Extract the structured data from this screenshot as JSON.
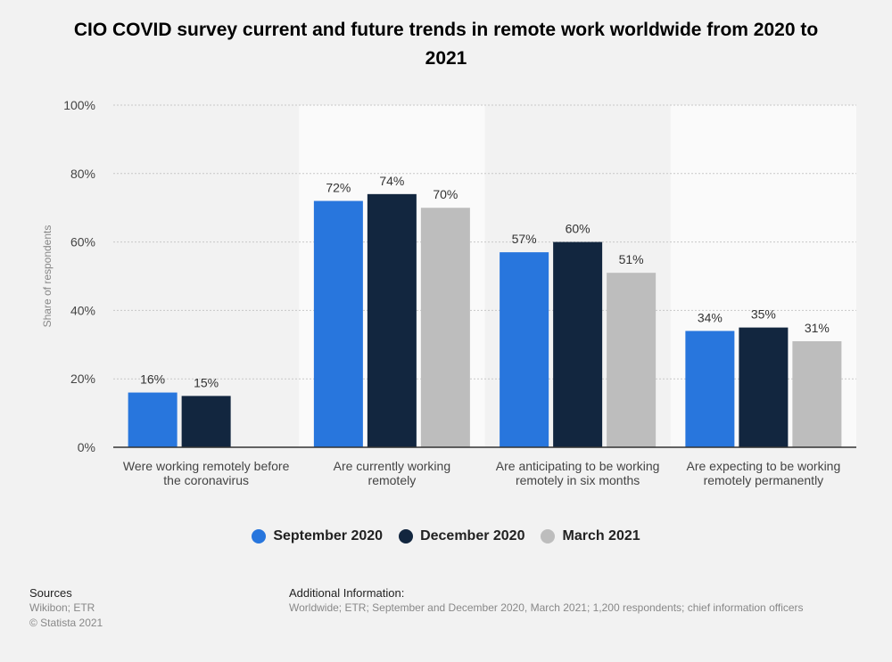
{
  "chart_data": {
    "type": "bar",
    "title": "CIO COVID survey current and future trends in remote work worldwide from 2020 to 2021",
    "ylabel": "Share of respondents",
    "xlabel": "",
    "ylim": [
      0,
      100
    ],
    "yticks": [
      "0%",
      "20%",
      "40%",
      "60%",
      "80%",
      "100%"
    ],
    "grid": true,
    "legend_position": "bottom",
    "categories": [
      [
        "Were working remotely before",
        "the coronavirus"
      ],
      [
        "Are currently working",
        "remotely"
      ],
      [
        "Are anticipating to be working",
        "remotely in six months"
      ],
      [
        "Are expecting to be working",
        "remotely permanently"
      ]
    ],
    "series": [
      {
        "name": "September 2020",
        "color": "#2876dd",
        "values": [
          16,
          72,
          57,
          34
        ],
        "labels": [
          "16%",
          "72%",
          "57%",
          "34%"
        ]
      },
      {
        "name": "December 2020",
        "color": "#12263f",
        "values": [
          15,
          74,
          60,
          35
        ],
        "labels": [
          "15%",
          "74%",
          "60%",
          "35%"
        ]
      },
      {
        "name": "March 2021",
        "color": "#bdbdbd",
        "values": [
          null,
          70,
          51,
          31
        ],
        "labels": [
          "",
          "70%",
          "51%",
          "31%"
        ]
      }
    ]
  },
  "footer": {
    "sources_label": "Sources",
    "sources_line1": "Wikibon; ETR",
    "sources_line2": "© Statista 2021",
    "additional_label": "Additional Information:",
    "additional_text": "Worldwide; ETR; September and December 2020, March 2021; 1,200 respondents; chief information officers"
  }
}
